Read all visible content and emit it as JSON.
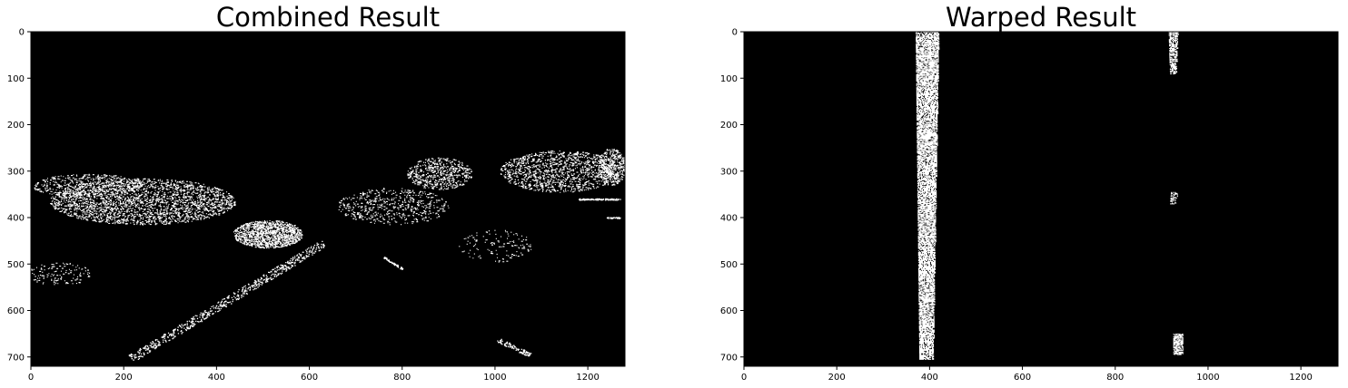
{
  "colors": {
    "background": "#ffffff",
    "plot_background": "#000000",
    "pixel_on": "#ffffff",
    "axis": "#000000"
  },
  "chart_data": [
    {
      "type": "image",
      "title": "Combined Result",
      "xlabel": "",
      "ylabel": "",
      "xlim": [
        0,
        1280
      ],
      "ylim": [
        720,
        0
      ],
      "x_ticks": [
        0,
        200,
        400,
        600,
        800,
        1000,
        1200
      ],
      "y_ticks": [
        0,
        100,
        200,
        300,
        400,
        500,
        600,
        700
      ],
      "grid": false,
      "features": [
        {
          "kind": "line",
          "from": [
            215,
            703
          ],
          "to": [
            630,
            455
          ],
          "width": 18
        },
        {
          "kind": "line",
          "from": [
            1005,
            662
          ],
          "to": [
            1075,
            695
          ],
          "width": 10
        },
        {
          "kind": "blob",
          "center": [
            510,
            435
          ],
          "rx": 75,
          "ry": 30,
          "density": 0.75
        },
        {
          "kind": "blob",
          "center": [
            240,
            365
          ],
          "rx": 200,
          "ry": 50,
          "density": 0.32
        },
        {
          "kind": "blob",
          "center": [
            120,
            330
          ],
          "rx": 120,
          "ry": 25,
          "density": 0.22
        },
        {
          "kind": "blob",
          "center": [
            880,
            305
          ],
          "rx": 70,
          "ry": 35,
          "density": 0.3
        },
        {
          "kind": "blob",
          "center": [
            1140,
            300
          ],
          "rx": 130,
          "ry": 45,
          "density": 0.28
        },
        {
          "kind": "blob",
          "center": [
            1250,
            290
          ],
          "rx": 30,
          "ry": 40,
          "density": 0.4
        },
        {
          "kind": "blob",
          "center": [
            780,
            375
          ],
          "rx": 120,
          "ry": 40,
          "density": 0.15
        },
        {
          "kind": "blob",
          "center": [
            60,
            520
          ],
          "rx": 70,
          "ry": 25,
          "density": 0.1
        },
        {
          "kind": "blob",
          "center": [
            1000,
            460
          ],
          "rx": 80,
          "ry": 35,
          "density": 0.06
        },
        {
          "kind": "line",
          "from": [
            760,
            485
          ],
          "to": [
            800,
            510
          ],
          "width": 4
        },
        {
          "kind": "line",
          "from": [
            1180,
            360
          ],
          "to": [
            1270,
            360
          ],
          "width": 3
        },
        {
          "kind": "line",
          "from": [
            1240,
            400
          ],
          "to": [
            1270,
            400
          ],
          "width": 3
        }
      ]
    },
    {
      "type": "image",
      "title": "Warped Result",
      "xlabel": "",
      "ylabel": "",
      "xlim": [
        0,
        1280
      ],
      "ylim": [
        720,
        0
      ],
      "x_ticks": [
        0,
        200,
        400,
        600,
        800,
        1000,
        1200
      ],
      "y_ticks": [
        0,
        100,
        200,
        300,
        400,
        500,
        600,
        700
      ],
      "grid": false,
      "features": [
        {
          "kind": "band",
          "x_top": [
            370,
            420
          ],
          "x_bottom": [
            378,
            408
          ],
          "y": [
            0,
            705
          ],
          "density": 0.78
        },
        {
          "kind": "band",
          "x_top": [
            915,
            935
          ],
          "x_bottom": [
            918,
            932
          ],
          "y": [
            0,
            90
          ],
          "density": 0.65
        },
        {
          "kind": "band",
          "x_top": [
            925,
            945
          ],
          "x_bottom": [
            925,
            945
          ],
          "y": [
            650,
            695
          ],
          "density": 0.75
        },
        {
          "kind": "band",
          "x_top": [
            920,
            935
          ],
          "x_bottom": [
            918,
            930
          ],
          "y": [
            345,
            370
          ],
          "density": 0.55
        }
      ]
    }
  ]
}
